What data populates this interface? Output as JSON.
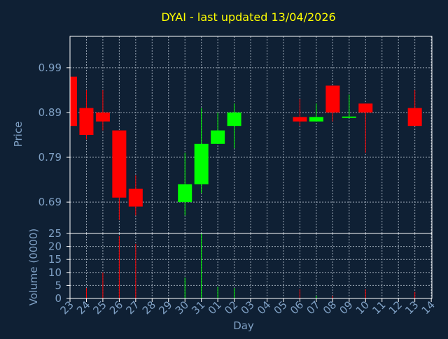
{
  "colors": {
    "background": "#0f2034",
    "frame": "#ffffff",
    "grid": "#9aa6b4",
    "title": "#ffff00",
    "axis_text": "#7fa0c4",
    "up": "#00ff00",
    "down": "#ff0000"
  },
  "chart_data": [
    {
      "type": "candlestick",
      "title": "DYAI - last updated 13/04/2026",
      "ylabel": "Price",
      "ylim": [
        0.62,
        1.06
      ],
      "yticks": [
        "0.69",
        "0.79",
        "0.89",
        "0.99"
      ],
      "grid": true,
      "categories": [
        "23",
        "24",
        "25",
        "26",
        "27",
        "28",
        "29",
        "30",
        "31",
        "01",
        "02",
        "03",
        "04",
        "05",
        "06",
        "07",
        "08",
        "09",
        "10",
        "11",
        "12",
        "13",
        "14"
      ],
      "candles": [
        {
          "day": "23",
          "open": 0.97,
          "close": 0.86,
          "high": 0.97,
          "low": 0.86
        },
        {
          "day": "24",
          "open": 0.9,
          "close": 0.84,
          "high": 0.94,
          "low": 0.83
        },
        {
          "day": "25",
          "open": 0.89,
          "close": 0.87,
          "high": 0.94,
          "low": 0.85
        },
        {
          "day": "26",
          "open": 0.85,
          "close": 0.7,
          "high": 0.85,
          "low": 0.65
        },
        {
          "day": "27",
          "open": 0.72,
          "close": 0.68,
          "high": 0.75,
          "low": 0.66
        },
        {
          "day": "30",
          "open": 0.69,
          "close": 0.73,
          "high": 0.8,
          "low": 0.66
        },
        {
          "day": "31",
          "open": 0.73,
          "close": 0.82,
          "high": 0.9,
          "low": 0.71
        },
        {
          "day": "01",
          "open": 0.82,
          "close": 0.85,
          "high": 0.89,
          "low": 0.82
        },
        {
          "day": "02",
          "open": 0.86,
          "close": 0.89,
          "high": 0.91,
          "low": 0.81
        },
        {
          "day": "06",
          "open": 0.88,
          "close": 0.87,
          "high": 0.92,
          "low": 0.86
        },
        {
          "day": "07",
          "open": 0.87,
          "close": 0.88,
          "high": 0.91,
          "low": 0.87
        },
        {
          "day": "08",
          "open": 0.95,
          "close": 0.89,
          "high": 0.95,
          "low": 0.87
        },
        {
          "day": "09",
          "open": 0.88,
          "close": 0.881,
          "high": 0.93,
          "low": 0.88
        },
        {
          "day": "10",
          "open": 0.91,
          "close": 0.89,
          "high": 0.91,
          "low": 0.8
        },
        {
          "day": "13",
          "open": 0.9,
          "close": 0.86,
          "high": 0.94,
          "low": 0.86
        }
      ]
    },
    {
      "type": "bar",
      "ylabel": "Volume (0000)",
      "xlabel": "Day",
      "ylim": [
        0,
        25
      ],
      "yticks": [
        "0",
        "5",
        "10",
        "15",
        "20",
        "25"
      ],
      "grid": true,
      "categories": [
        "23",
        "24",
        "25",
        "26",
        "27",
        "28",
        "29",
        "30",
        "31",
        "01",
        "02",
        "03",
        "04",
        "05",
        "06",
        "07",
        "08",
        "09",
        "10",
        "11",
        "12",
        "13",
        "14"
      ],
      "bars": [
        {
          "day": "24",
          "value": 4,
          "direction": "down"
        },
        {
          "day": "25",
          "value": 10,
          "direction": "down"
        },
        {
          "day": "26",
          "value": 24,
          "direction": "down"
        },
        {
          "day": "27",
          "value": 21,
          "direction": "down"
        },
        {
          "day": "30",
          "value": 8,
          "direction": "up"
        },
        {
          "day": "31",
          "value": 25,
          "direction": "up"
        },
        {
          "day": "01",
          "value": 4.5,
          "direction": "up"
        },
        {
          "day": "02",
          "value": 4,
          "direction": "up"
        },
        {
          "day": "06",
          "value": 3.5,
          "direction": "down"
        },
        {
          "day": "07",
          "value": 1,
          "direction": "up"
        },
        {
          "day": "08",
          "value": 1,
          "direction": "down"
        },
        {
          "day": "10",
          "value": 3.5,
          "direction": "down"
        },
        {
          "day": "13",
          "value": 2.5,
          "direction": "down"
        }
      ]
    }
  ]
}
